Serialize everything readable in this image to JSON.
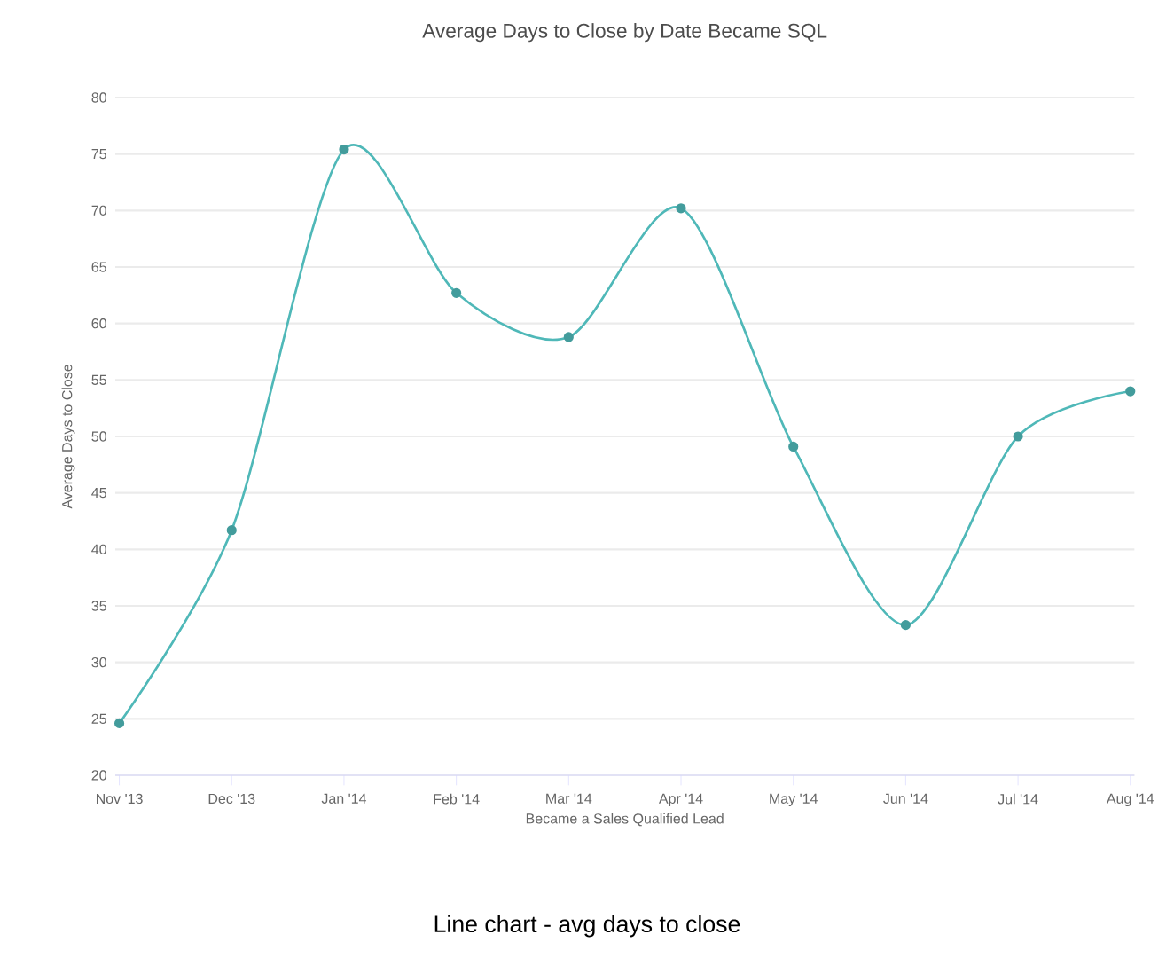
{
  "chart_data": {
    "type": "line",
    "title": "Average Days to Close by Date Became SQL",
    "xlabel": "Became a Sales Qualified Lead",
    "ylabel": "Average Days to Close",
    "categories": [
      "Nov '13",
      "Dec '13",
      "Jan '14",
      "Feb '14",
      "Mar '14",
      "Apr '14",
      "May '14",
      "Jun '14",
      "Jul '14",
      "Aug '14"
    ],
    "series": [
      {
        "color": "#4fb8b8",
        "values": [
          24.6,
          41.7,
          75.4,
          62.7,
          58.8,
          70.2,
          49.1,
          33.3,
          50.0,
          54.0
        ]
      }
    ],
    "ylim": [
      20,
      80
    ],
    "yticks": [
      20,
      25,
      30,
      35,
      40,
      45,
      50,
      55,
      60,
      65,
      70,
      75,
      80
    ],
    "grid": "y",
    "marker": "circle",
    "line_style": "solid",
    "annotations": [
      "Line chart - avg days to close"
    ]
  }
}
